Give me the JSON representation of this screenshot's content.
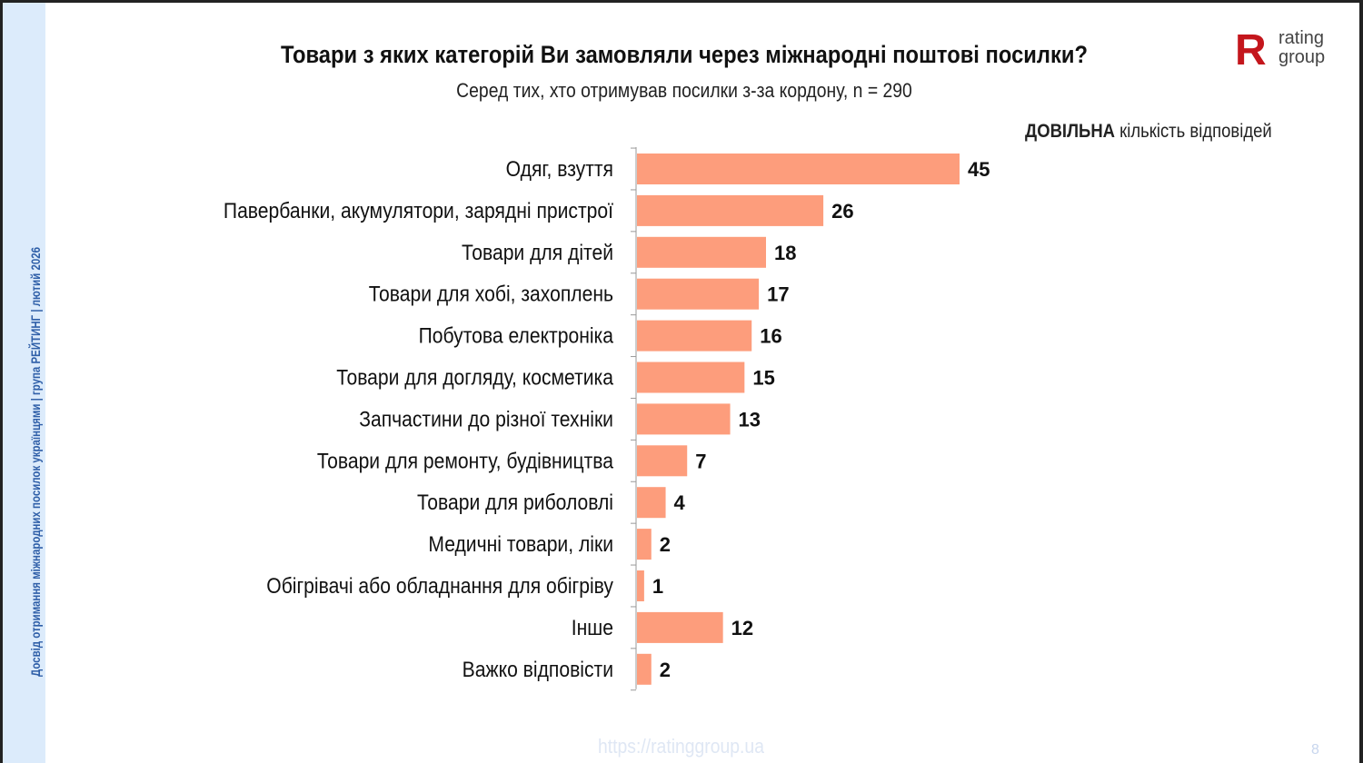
{
  "sidebar": {
    "text": "Досвід отримання міжнародних посилок українцями  |  група РЕЙТИНГ  |  лютий 2026"
  },
  "logo": {
    "text_top": "rating",
    "text_bottom": "group",
    "letter": "R",
    "color": "#c4161c"
  },
  "footer": {
    "url": "https://ratinggroup.ua",
    "page": "8"
  },
  "chart_data": {
    "type": "bar",
    "orientation": "horizontal",
    "title": "Товари з яких категорій Ви замовляли через міжнародні поштові посилки?",
    "subtitle": "Серед тих, хто отримував посилки з-за кордону, n = 290",
    "note_bold": "ДОВІЛЬНА",
    "note_rest": " кількість відповідей",
    "categories": [
      "Одяг, взуття",
      "Павербанки, акумулятори, зарядні пристрої",
      "Товари для дітей",
      "Товари для хобі, захоплень",
      "Побутова електроніка",
      "Товари для догляду, косметика",
      "Запчастини до різної техніки",
      "Товари для ремонту, будівництва",
      "Товари для риболовлі",
      "Медичні товари, ліки",
      "Обігрівачі або обладнання для обігріву",
      "Інше",
      "Важко відповісти"
    ],
    "values": [
      45,
      26,
      18,
      17,
      16,
      15,
      13,
      7,
      4,
      2,
      1,
      12,
      2
    ],
    "bar_color": "#fd9d7c",
    "grid": false
  }
}
